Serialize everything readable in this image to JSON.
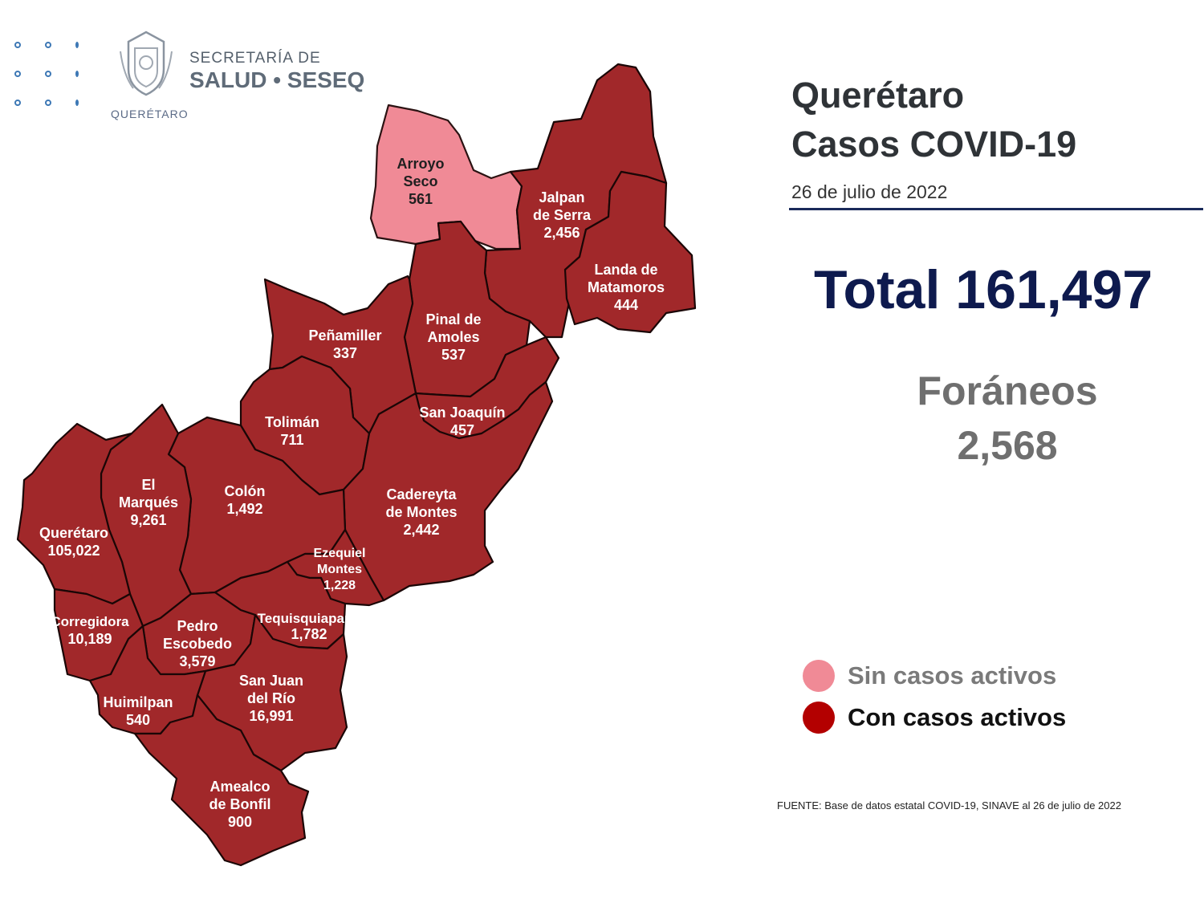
{
  "header": {
    "logo_line1": "SECRETARÍA DE",
    "logo_line2": "SALUD • SESEQ",
    "logo_sub": "QUERÉTARO"
  },
  "title": {
    "line1": "Querétaro",
    "line2": "Casos COVID-19",
    "date": "26 de julio  de 2022"
  },
  "total": "Total 161,497",
  "foraneos": {
    "label": "Foráneos",
    "value": "2,568"
  },
  "legend": [
    {
      "label": "Sin casos activos",
      "color": "#f08a96",
      "text_color": "#7a7a7a"
    },
    {
      "label": "Con casos activos",
      "color": "#b30000",
      "text_color": "#111111"
    }
  ],
  "source": "FUENTE: Base de datos estatal  COVID-19,  SINAVE  al 26 de julio de 2022",
  "colors": {
    "active": "#a1282a",
    "no_active": "#f08a96",
    "title_blue": "#0e1a4e"
  },
  "municipalities": {
    "arroyo_seco": {
      "name1": "Arroyo",
      "name2": "Seco",
      "cases": "561",
      "status": "sin casos activos"
    },
    "jalpan": {
      "name1": "Jalpan",
      "name2": "de Serra",
      "cases": "2,456",
      "status": "con casos activos"
    },
    "landa": {
      "name1": "Landa de",
      "name2": "Matamoros",
      "cases": "444",
      "status": "con casos activos"
    },
    "pinal": {
      "name1": "Pinal de",
      "name2": "Amoles",
      "cases": "537",
      "status": "con casos activos"
    },
    "penamiller": {
      "name1": "Peñamiller",
      "cases": "337",
      "status": "con casos activos"
    },
    "san_joaquin": {
      "name1": "San Joaquín",
      "cases": "457",
      "status": "con casos activos"
    },
    "toliman": {
      "name1": "Tolimán",
      "cases": "711",
      "status": "con casos activos"
    },
    "cadereyta": {
      "name1": "Cadereyta",
      "name2": "de Montes",
      "cases": "2,442",
      "status": "con casos activos"
    },
    "colon": {
      "name1": "Colón",
      "cases": "1,492",
      "status": "con casos activos"
    },
    "el_marques": {
      "name1": "El",
      "name2": "Marqués",
      "cases": "9,261",
      "status": "con casos activos"
    },
    "queretaro": {
      "name1": "Querétaro",
      "cases": "105,022",
      "status": "con casos activos"
    },
    "ezequiel": {
      "name1": "Ezequiel",
      "name2": "Montes",
      "cases": "1,228",
      "status": "con casos activos"
    },
    "corregidora": {
      "name1": "Corregidora",
      "cases": "10,189",
      "status": "con casos activos"
    },
    "pedro_escobedo": {
      "name1": "Pedro",
      "name2": "Escobedo",
      "cases": "3,579",
      "status": "con casos activos"
    },
    "tequisquiapan": {
      "name1": "Tequisquiapan",
      "cases": "1,782",
      "status": "con casos activos"
    },
    "san_juan": {
      "name1": "San Juan",
      "name2": "del Río",
      "cases": "16,991",
      "status": "con casos activos"
    },
    "huimilpan": {
      "name1": "Huimilpan",
      "cases": "540",
      "status": "con casos activos"
    },
    "amealco": {
      "name1": "Amealco",
      "name2": "de Bonfil",
      "cases": "900",
      "status": "con casos activos"
    }
  }
}
